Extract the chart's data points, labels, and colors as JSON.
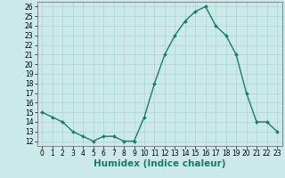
{
  "x": [
    0,
    1,
    2,
    3,
    4,
    5,
    6,
    7,
    8,
    9,
    10,
    11,
    12,
    13,
    14,
    15,
    16,
    17,
    18,
    19,
    20,
    21,
    22,
    23
  ],
  "y": [
    15,
    14.5,
    14,
    13,
    12.5,
    12,
    12.5,
    12.5,
    12,
    12,
    14.5,
    18,
    21,
    23,
    24.5,
    25.5,
    26,
    24,
    23,
    21,
    17,
    14,
    14,
    13
  ],
  "xlabel": "Humidex (Indice chaleur)",
  "xlim": [
    -0.5,
    23.5
  ],
  "ylim": [
    11.5,
    26.5
  ],
  "yticks": [
    12,
    13,
    14,
    15,
    16,
    17,
    18,
    19,
    20,
    21,
    22,
    23,
    24,
    25,
    26
  ],
  "xticks": [
    0,
    1,
    2,
    3,
    4,
    5,
    6,
    7,
    8,
    9,
    10,
    11,
    12,
    13,
    14,
    15,
    16,
    17,
    18,
    19,
    20,
    21,
    22,
    23
  ],
  "line_color": "#1a7a6e",
  "marker_color": "#1a7a6e",
  "bg_color": "#cce9e9",
  "grid_color": "#aad4d4",
  "tick_label_fontsize": 5.5,
  "xlabel_fontsize": 7.5
}
